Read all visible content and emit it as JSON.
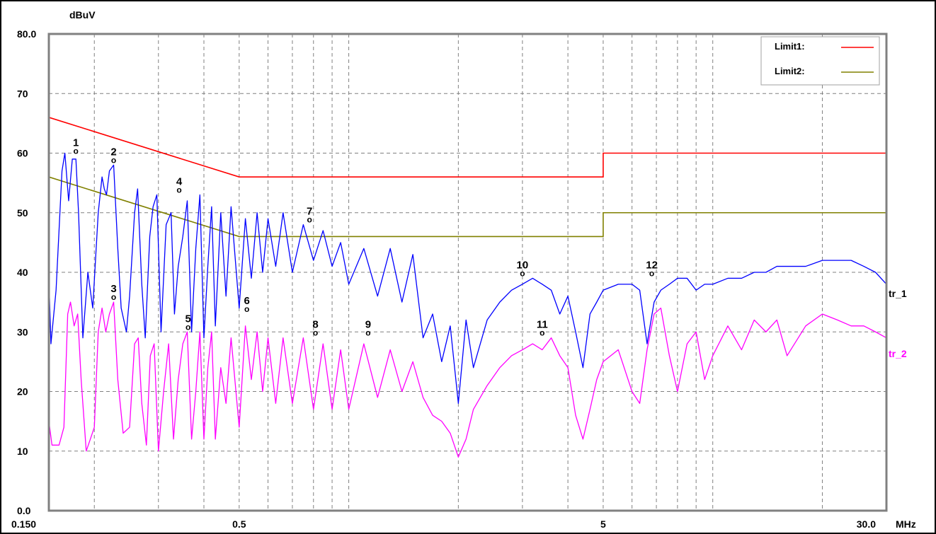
{
  "chart_data": {
    "type": "line",
    "title": "",
    "y_unit": "dBuV",
    "x_unit": "MHz",
    "x_scale": "log",
    "xlim": [
      0.15,
      30.0
    ],
    "ylim": [
      0,
      80
    ],
    "grid": true,
    "legend_position": "top-right",
    "y_tick_labels": [
      {
        "value": 0,
        "label": "0.0"
      },
      {
        "value": 10,
        "label": "10"
      },
      {
        "value": 20,
        "label": "20"
      },
      {
        "value": 30,
        "label": "30"
      },
      {
        "value": 40,
        "label": "40"
      },
      {
        "value": 50,
        "label": "50"
      },
      {
        "value": 60,
        "label": "60"
      },
      {
        "value": 70,
        "label": "70"
      },
      {
        "value": 80,
        "label": "80.0"
      }
    ],
    "x_tick_labels": [
      {
        "value": 0.15,
        "label": "0.150"
      },
      {
        "value": 0.5,
        "label": "0.5"
      },
      {
        "value": 5,
        "label": "5"
      },
      {
        "value": 30,
        "label": "30.0"
      }
    ],
    "x_grid": [
      0.2,
      0.3,
      0.4,
      0.5,
      0.6,
      0.7,
      0.8,
      0.9,
      1,
      2,
      3,
      4,
      5,
      6,
      7,
      8,
      9,
      10,
      20
    ],
    "limits": [
      {
        "name": "Limit1:",
        "color": "#ff0000",
        "points": [
          [
            0.15,
            66
          ],
          [
            0.5,
            56
          ],
          [
            5,
            56
          ],
          [
            5,
            60
          ],
          [
            30,
            60
          ]
        ]
      },
      {
        "name": "Limit2:",
        "color": "#808000",
        "points": [
          [
            0.15,
            56
          ],
          [
            0.5,
            46
          ],
          [
            5,
            46
          ],
          [
            5,
            50
          ],
          [
            30,
            50
          ]
        ]
      }
    ],
    "series": [
      {
        "name": "tr_1",
        "color": "#0000ff",
        "points": [
          [
            0.15,
            39
          ],
          [
            0.152,
            28
          ],
          [
            0.157,
            37
          ],
          [
            0.163,
            57
          ],
          [
            0.166,
            60
          ],
          [
            0.17,
            52
          ],
          [
            0.174,
            59
          ],
          [
            0.178,
            59
          ],
          [
            0.181,
            50
          ],
          [
            0.186,
            29
          ],
          [
            0.192,
            40
          ],
          [
            0.198,
            34
          ],
          [
            0.205,
            50
          ],
          [
            0.21,
            56
          ],
          [
            0.213,
            54
          ],
          [
            0.216,
            53
          ],
          [
            0.22,
            57
          ],
          [
            0.226,
            58
          ],
          [
            0.232,
            44
          ],
          [
            0.237,
            34
          ],
          [
            0.245,
            30
          ],
          [
            0.25,
            36
          ],
          [
            0.258,
            50
          ],
          [
            0.263,
            54
          ],
          [
            0.27,
            38
          ],
          [
            0.276,
            29
          ],
          [
            0.284,
            46
          ],
          [
            0.29,
            51
          ],
          [
            0.297,
            53
          ],
          [
            0.305,
            30
          ],
          [
            0.315,
            48
          ],
          [
            0.325,
            50
          ],
          [
            0.332,
            33
          ],
          [
            0.34,
            41
          ],
          [
            0.35,
            46
          ],
          [
            0.36,
            52
          ],
          [
            0.37,
            30
          ],
          [
            0.38,
            44
          ],
          [
            0.39,
            53
          ],
          [
            0.4,
            29
          ],
          [
            0.41,
            41
          ],
          [
            0.42,
            51
          ],
          [
            0.43,
            31
          ],
          [
            0.445,
            50
          ],
          [
            0.46,
            36
          ],
          [
            0.475,
            51
          ],
          [
            0.5,
            34
          ],
          [
            0.52,
            49
          ],
          [
            0.54,
            39
          ],
          [
            0.56,
            50
          ],
          [
            0.58,
            40
          ],
          [
            0.6,
            49
          ],
          [
            0.63,
            41
          ],
          [
            0.66,
            50
          ],
          [
            0.7,
            40
          ],
          [
            0.75,
            48
          ],
          [
            0.8,
            42
          ],
          [
            0.85,
            47
          ],
          [
            0.9,
            41
          ],
          [
            0.95,
            45
          ],
          [
            1.0,
            38
          ],
          [
            1.1,
            44
          ],
          [
            1.2,
            36
          ],
          [
            1.3,
            44
          ],
          [
            1.4,
            35
          ],
          [
            1.5,
            43
          ],
          [
            1.6,
            29
          ],
          [
            1.7,
            33
          ],
          [
            1.8,
            25
          ],
          [
            1.9,
            31
          ],
          [
            2.0,
            18
          ],
          [
            2.1,
            32
          ],
          [
            2.2,
            24
          ],
          [
            2.4,
            32
          ],
          [
            2.6,
            35
          ],
          [
            2.8,
            37
          ],
          [
            3.0,
            38
          ],
          [
            3.2,
            39
          ],
          [
            3.4,
            38
          ],
          [
            3.6,
            37
          ],
          [
            3.8,
            33
          ],
          [
            4.0,
            36
          ],
          [
            4.2,
            30
          ],
          [
            4.4,
            24
          ],
          [
            4.6,
            33
          ],
          [
            4.8,
            35
          ],
          [
            5.0,
            37
          ],
          [
            5.5,
            38
          ],
          [
            6.0,
            38
          ],
          [
            6.3,
            37
          ],
          [
            6.6,
            28
          ],
          [
            6.9,
            35
          ],
          [
            7.2,
            37
          ],
          [
            7.6,
            38
          ],
          [
            8.0,
            39
          ],
          [
            8.5,
            39
          ],
          [
            9.0,
            37
          ],
          [
            9.5,
            38
          ],
          [
            10,
            38
          ],
          [
            11,
            39
          ],
          [
            12,
            39
          ],
          [
            13,
            40
          ],
          [
            14,
            40
          ],
          [
            15,
            41
          ],
          [
            16,
            41
          ],
          [
            18,
            41
          ],
          [
            20,
            42
          ],
          [
            22,
            42
          ],
          [
            24,
            42
          ],
          [
            26,
            41
          ],
          [
            28,
            40
          ],
          [
            30,
            38
          ]
        ]
      },
      {
        "name": "tr_2",
        "color": "#ff00ff",
        "points": [
          [
            0.15,
            15
          ],
          [
            0.153,
            11
          ],
          [
            0.16,
            11
          ],
          [
            0.165,
            14
          ],
          [
            0.169,
            33
          ],
          [
            0.172,
            35
          ],
          [
            0.176,
            31
          ],
          [
            0.18,
            33
          ],
          [
            0.184,
            22
          ],
          [
            0.19,
            10
          ],
          [
            0.195,
            12
          ],
          [
            0.2,
            14
          ],
          [
            0.205,
            30
          ],
          [
            0.21,
            34
          ],
          [
            0.215,
            30
          ],
          [
            0.22,
            33
          ],
          [
            0.226,
            35
          ],
          [
            0.232,
            22
          ],
          [
            0.24,
            13
          ],
          [
            0.25,
            14
          ],
          [
            0.258,
            28
          ],
          [
            0.264,
            29
          ],
          [
            0.27,
            18
          ],
          [
            0.278,
            11
          ],
          [
            0.285,
            26
          ],
          [
            0.292,
            28
          ],
          [
            0.3,
            10
          ],
          [
            0.31,
            20
          ],
          [
            0.32,
            28
          ],
          [
            0.33,
            12
          ],
          [
            0.34,
            22
          ],
          [
            0.35,
            28
          ],
          [
            0.36,
            30
          ],
          [
            0.37,
            12
          ],
          [
            0.38,
            20
          ],
          [
            0.39,
            30
          ],
          [
            0.4,
            12
          ],
          [
            0.41,
            24
          ],
          [
            0.42,
            30
          ],
          [
            0.43,
            12
          ],
          [
            0.445,
            24
          ],
          [
            0.46,
            18
          ],
          [
            0.475,
            29
          ],
          [
            0.5,
            14
          ],
          [
            0.52,
            31
          ],
          [
            0.54,
            22
          ],
          [
            0.56,
            30
          ],
          [
            0.58,
            20
          ],
          [
            0.6,
            29
          ],
          [
            0.63,
            18
          ],
          [
            0.66,
            29
          ],
          [
            0.7,
            18
          ],
          [
            0.75,
            29
          ],
          [
            0.8,
            17
          ],
          [
            0.85,
            28
          ],
          [
            0.9,
            17
          ],
          [
            0.95,
            27
          ],
          [
            1.0,
            17
          ],
          [
            1.1,
            28
          ],
          [
            1.2,
            19
          ],
          [
            1.3,
            27
          ],
          [
            1.4,
            20
          ],
          [
            1.5,
            25
          ],
          [
            1.6,
            19
          ],
          [
            1.7,
            16
          ],
          [
            1.8,
            15
          ],
          [
            1.9,
            13
          ],
          [
            2.0,
            9
          ],
          [
            2.1,
            12
          ],
          [
            2.2,
            17
          ],
          [
            2.4,
            21
          ],
          [
            2.6,
            24
          ],
          [
            2.8,
            26
          ],
          [
            3.0,
            27
          ],
          [
            3.2,
            28
          ],
          [
            3.4,
            27
          ],
          [
            3.6,
            29
          ],
          [
            3.8,
            26
          ],
          [
            4.0,
            24
          ],
          [
            4.2,
            16
          ],
          [
            4.4,
            12
          ],
          [
            4.6,
            17
          ],
          [
            4.8,
            22
          ],
          [
            5.0,
            25
          ],
          [
            5.5,
            27
          ],
          [
            6.0,
            20
          ],
          [
            6.3,
            18
          ],
          [
            6.6,
            27
          ],
          [
            6.9,
            33
          ],
          [
            7.2,
            34
          ],
          [
            7.6,
            26
          ],
          [
            8.0,
            20
          ],
          [
            8.5,
            28
          ],
          [
            9.0,
            30
          ],
          [
            9.5,
            22
          ],
          [
            10,
            26
          ],
          [
            11,
            31
          ],
          [
            12,
            27
          ],
          [
            13,
            32
          ],
          [
            14,
            30
          ],
          [
            15,
            32
          ],
          [
            16,
            26
          ],
          [
            18,
            31
          ],
          [
            20,
            33
          ],
          [
            22,
            32
          ],
          [
            24,
            31
          ],
          [
            26,
            31
          ],
          [
            28,
            30
          ],
          [
            30,
            29
          ]
        ]
      }
    ],
    "markers": [
      {
        "label": "1",
        "x": 0.178,
        "y": 59.5
      },
      {
        "label": "2",
        "x": 0.226,
        "y": 58
      },
      {
        "label": "3",
        "x": 0.226,
        "y": 35
      },
      {
        "label": "4",
        "x": 0.342,
        "y": 53
      },
      {
        "label": "5",
        "x": 0.362,
        "y": 30
      },
      {
        "label": "6",
        "x": 0.525,
        "y": 33
      },
      {
        "label": "7",
        "x": 0.78,
        "y": 48
      },
      {
        "label": "8",
        "x": 0.81,
        "y": 29
      },
      {
        "label": "9",
        "x": 1.13,
        "y": 29
      },
      {
        "label": "10",
        "x": 3.0,
        "y": 39
      },
      {
        "label": "11",
        "x": 3.4,
        "y": 29
      },
      {
        "label": "12",
        "x": 6.8,
        "y": 39
      }
    ]
  }
}
